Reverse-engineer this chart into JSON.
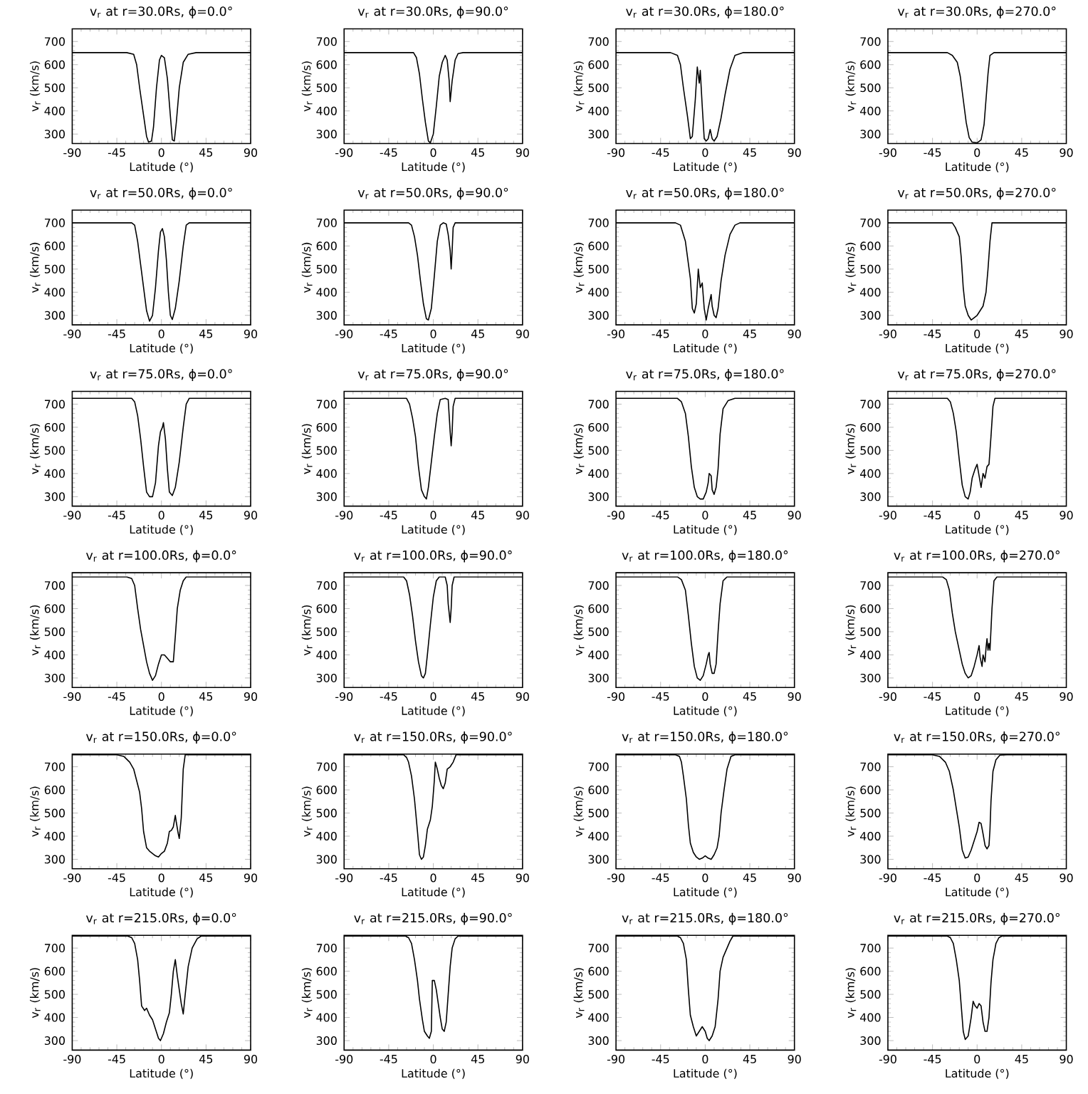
{
  "chart_data": [
    {
      "type": "line",
      "title": "v$_{r}$ at r=30.0Rs, ϕ=0.0°",
      "xlabel": "Latitude (°)",
      "ylabel": "v$_{r}$ (km/s)",
      "xlim": [
        -90,
        90
      ],
      "ylim": [
        259,
        755
      ],
      "xticks": [
        -90,
        -45,
        0,
        45,
        90
      ],
      "yticks": [
        300,
        400,
        500,
        600,
        700
      ],
      "color": "#000000",
      "x": [
        -90,
        -35,
        -28,
        -25,
        -22,
        -18,
        -15,
        -13,
        -10,
        -8,
        -5,
        -2,
        0,
        3,
        6,
        9,
        11,
        13,
        15,
        18,
        22,
        27,
        35,
        90
      ],
      "values": [
        652,
        652,
        645,
        600,
        500,
        380,
        290,
        265,
        270,
        330,
        500,
        620,
        640,
        630,
        540,
        380,
        275,
        270,
        350,
        500,
        610,
        645,
        652,
        652
      ]
    },
    {
      "type": "line",
      "title": "v$_{r}$ at r=30.0Rs, ϕ=90.0°",
      "xlabel": "Latitude (°)",
      "ylabel": "v$_{r}$ (km/s)",
      "xlim": [
        -90,
        90
      ],
      "ylim": [
        259,
        755
      ],
      "xticks": [
        -90,
        -45,
        0,
        45,
        90
      ],
      "yticks": [
        300,
        400,
        500,
        600,
        700
      ],
      "color": "#000000",
      "x": [
        -90,
        -20,
        -17,
        -14,
        -11,
        -8,
        -5,
        -3,
        0,
        3,
        6,
        9,
        12,
        14,
        16,
        17,
        19,
        22,
        25,
        30,
        90
      ],
      "values": [
        652,
        652,
        630,
        560,
        450,
        350,
        270,
        262,
        300,
        420,
        550,
        610,
        640,
        620,
        530,
        440,
        530,
        620,
        648,
        652,
        652
      ]
    },
    {
      "type": "line",
      "title": "v$_{r}$ at r=30.0Rs, ϕ=180.0°",
      "xlabel": "Latitude (°)",
      "ylabel": "v$_{r}$ (km/s)",
      "xlim": [
        -90,
        90
      ],
      "ylim": [
        259,
        755
      ],
      "xticks": [
        -90,
        -45,
        0,
        45,
        90
      ],
      "yticks": [
        300,
        400,
        500,
        600,
        700
      ],
      "color": "#000000",
      "x": [
        -90,
        -35,
        -28,
        -25,
        -22,
        -18,
        -15,
        -13,
        -10,
        -8,
        -6,
        -5,
        -3,
        -1,
        1,
        3,
        5,
        7,
        9,
        12,
        16,
        20,
        25,
        30,
        38,
        90
      ],
      "values": [
        652,
        652,
        640,
        600,
        500,
        380,
        280,
        290,
        450,
        590,
        520,
        575,
        420,
        280,
        270,
        280,
        320,
        280,
        270,
        290,
        370,
        470,
        580,
        640,
        652,
        652
      ]
    },
    {
      "type": "line",
      "title": "v$_{r}$ at r=30.0Rs, ϕ=270.0°",
      "xlabel": "Latitude (°)",
      "ylabel": "v$_{r}$ (km/s)",
      "xlim": [
        -90,
        90
      ],
      "ylim": [
        259,
        755
      ],
      "xticks": [
        -90,
        -45,
        0,
        45,
        90
      ],
      "yticks": [
        300,
        400,
        500,
        600,
        700
      ],
      "color": "#000000",
      "x": [
        -90,
        -30,
        -25,
        -20,
        -17,
        -14,
        -11,
        -8,
        -5,
        0,
        4,
        7,
        9,
        11,
        13,
        17,
        90
      ],
      "values": [
        652,
        652,
        640,
        610,
        550,
        450,
        350,
        285,
        265,
        262,
        275,
        340,
        450,
        560,
        640,
        652,
        652
      ]
    },
    {
      "type": "line",
      "title": "v$_{r}$ at r=50.0Rs, ϕ=0.0°",
      "xlabel": "Latitude (°)",
      "ylabel": "v$_{r}$ (km/s)",
      "xlim": [
        -90,
        90
      ],
      "ylim": [
        259,
        755
      ],
      "xticks": [
        -90,
        -45,
        0,
        45,
        90
      ],
      "yticks": [
        300,
        400,
        500,
        600,
        700
      ],
      "color": "#000000",
      "x": [
        -90,
        -30,
        -27,
        -24,
        -21,
        -18,
        -15,
        -12,
        -9,
        -6,
        -3,
        -1,
        1,
        3,
        5,
        7,
        9,
        11,
        14,
        18,
        22,
        25,
        28,
        90
      ],
      "values": [
        700,
        700,
        690,
        620,
        520,
        420,
        320,
        275,
        300,
        420,
        580,
        660,
        675,
        640,
        540,
        400,
        300,
        282,
        330,
        450,
        600,
        690,
        700,
        700
      ]
    },
    {
      "type": "line",
      "title": "v$_{r}$ at r=50.0Rs, ϕ=90.0°",
      "xlabel": "Latitude (°)",
      "ylabel": "v$_{r}$ (km/s)",
      "xlim": [
        -90,
        90
      ],
      "ylim": [
        259,
        755
      ],
      "xticks": [
        -90,
        -45,
        0,
        45,
        90
      ],
      "yticks": [
        300,
        400,
        500,
        600,
        700
      ],
      "color": "#000000",
      "x": [
        -90,
        -25,
        -22,
        -19,
        -16,
        -13,
        -10,
        -7,
        -5,
        -2,
        1,
        4,
        7,
        10,
        13,
        15,
        17,
        18,
        19,
        20,
        22,
        90
      ],
      "values": [
        700,
        700,
        690,
        640,
        560,
        450,
        350,
        285,
        280,
        330,
        470,
        620,
        690,
        700,
        695,
        650,
        580,
        500,
        580,
        680,
        700,
        700
      ]
    },
    {
      "type": "line",
      "title": "v$_{r}$ at r=50.0Rs, ϕ=180.0°",
      "xlabel": "Latitude (°)",
      "ylabel": "v$_{r}$ (km/s)",
      "xlim": [
        -90,
        90
      ],
      "ylim": [
        259,
        755
      ],
      "xticks": [
        -90,
        -45,
        0,
        45,
        90
      ],
      "yticks": [
        300,
        400,
        500,
        600,
        700
      ],
      "color": "#000000",
      "x": [
        -90,
        -30,
        -25,
        -20,
        -15,
        -13,
        -11,
        -9,
        -7,
        -5,
        -3,
        -1,
        1,
        3,
        5,
        6,
        7,
        9,
        11,
        13,
        16,
        20,
        25,
        30,
        35,
        90
      ],
      "values": [
        700,
        700,
        690,
        620,
        460,
        330,
        310,
        350,
        500,
        420,
        440,
        330,
        280,
        330,
        370,
        390,
        340,
        300,
        290,
        330,
        450,
        560,
        650,
        690,
        700,
        700
      ]
    },
    {
      "type": "line",
      "title": "v$_{r}$ at r=50.0Rs, ϕ=270.0°",
      "xlabel": "Latitude (°)",
      "ylabel": "v$_{r}$ (km/s)",
      "xlim": [
        -90,
        90
      ],
      "ylim": [
        259,
        755
      ],
      "xticks": [
        -90,
        -45,
        0,
        45,
        90
      ],
      "yticks": [
        300,
        400,
        500,
        600,
        700
      ],
      "color": "#000000",
      "x": [
        -90,
        -25,
        -22,
        -18,
        -16,
        -14,
        -12,
        -9,
        -6,
        -3,
        0,
        3,
        6,
        9,
        11,
        13,
        15,
        90
      ],
      "values": [
        700,
        700,
        680,
        640,
        550,
        420,
        340,
        300,
        280,
        290,
        300,
        320,
        340,
        400,
        500,
        620,
        700,
        700
      ]
    },
    {
      "type": "line",
      "title": "v$_{r}$ at r=75.0Rs, ϕ=0.0°",
      "xlabel": "Latitude (°)",
      "ylabel": "v$_{r}$ (km/s)",
      "xlim": [
        -90,
        90
      ],
      "ylim": [
        259,
        755
      ],
      "xticks": [
        -90,
        -45,
        0,
        45,
        90
      ],
      "yticks": [
        300,
        400,
        500,
        600,
        700
      ],
      "color": "#000000",
      "x": [
        -90,
        -30,
        -27,
        -24,
        -21,
        -18,
        -15,
        -12,
        -9,
        -6,
        -3,
        -1,
        1,
        2,
        4,
        6,
        8,
        11,
        14,
        18,
        22,
        25,
        28,
        90
      ],
      "values": [
        725,
        725,
        710,
        650,
        550,
        430,
        320,
        300,
        300,
        360,
        520,
        580,
        600,
        620,
        550,
        420,
        320,
        305,
        340,
        450,
        600,
        700,
        725,
        725
      ]
    },
    {
      "type": "line",
      "title": "v$_{r}$ at r=75.0Rs, ϕ=90.0°",
      "xlabel": "Latitude (°)",
      "ylabel": "v$_{r}$ (km/s)",
      "xlim": [
        -90,
        90
      ],
      "ylim": [
        259,
        755
      ],
      "xticks": [
        -90,
        -45,
        0,
        45,
        90
      ],
      "yticks": [
        300,
        400,
        500,
        600,
        700
      ],
      "color": "#000000",
      "x": [
        -90,
        -27,
        -24,
        -21,
        -18,
        -15,
        -12,
        -9,
        -7,
        -5,
        -2,
        1,
        4,
        7,
        12,
        15,
        16,
        17,
        18,
        19,
        20,
        22,
        90
      ],
      "values": [
        725,
        725,
        700,
        640,
        560,
        430,
        330,
        300,
        290,
        340,
        450,
        560,
        660,
        720,
        725,
        720,
        650,
        580,
        520,
        580,
        690,
        725,
        725
      ]
    },
    {
      "type": "line",
      "title": "v$_{r}$ at r=75.0Rs, ϕ=180.0°",
      "xlabel": "Latitude (°)",
      "ylabel": "v$_{r}$ (km/s)",
      "xlim": [
        -90,
        90
      ],
      "ylim": [
        259,
        755
      ],
      "xticks": [
        -90,
        -45,
        0,
        45,
        90
      ],
      "yticks": [
        300,
        400,
        500,
        600,
        700
      ],
      "color": "#000000",
      "x": [
        -90,
        -28,
        -24,
        -20,
        -17,
        -14,
        -11,
        -8,
        -5,
        -2,
        1,
        3,
        4,
        6,
        7,
        9,
        11,
        13,
        15,
        18,
        23,
        30,
        90
      ],
      "values": [
        725,
        725,
        710,
        660,
        560,
        430,
        340,
        300,
        290,
        290,
        320,
        360,
        400,
        390,
        330,
        310,
        340,
        420,
        570,
        680,
        715,
        725,
        725
      ]
    },
    {
      "type": "line",
      "title": "v$_{r}$ at r=75.0Rs, ϕ=270.0°",
      "xlabel": "Latitude (°)",
      "ylabel": "v$_{r}$ (km/s)",
      "xlim": [
        -90,
        90
      ],
      "ylim": [
        259,
        755
      ],
      "xticks": [
        -90,
        -45,
        0,
        45,
        90
      ],
      "yticks": [
        300,
        400,
        500,
        600,
        700
      ],
      "color": "#000000",
      "x": [
        -90,
        -30,
        -27,
        -24,
        -21,
        -18,
        -15,
        -12,
        -9,
        -7,
        -5,
        -2,
        0,
        2,
        4,
        6,
        8,
        10,
        12,
        14,
        16,
        18,
        90
      ],
      "values": [
        725,
        725,
        710,
        660,
        580,
        460,
        350,
        300,
        290,
        320,
        380,
        420,
        440,
        390,
        340,
        400,
        380,
        430,
        440,
        560,
        690,
        725,
        725
      ]
    },
    {
      "type": "line",
      "title": "v$_{r}$ at r=100.0Rs, ϕ=0.0°",
      "xlabel": "Latitude (°)",
      "ylabel": "v$_{r}$ (km/s)",
      "xlim": [
        -90,
        90
      ],
      "ylim": [
        259,
        755
      ],
      "xticks": [
        -90,
        -45,
        0,
        45,
        90
      ],
      "yticks": [
        300,
        400,
        500,
        600,
        700
      ],
      "color": "#000000",
      "x": [
        -90,
        -35,
        -30,
        -27,
        -24,
        -21,
        -18,
        -15,
        -12,
        -9,
        -6,
        -3,
        0,
        3,
        6,
        9,
        12,
        14,
        16,
        19,
        22,
        25,
        90
      ],
      "values": [
        737,
        737,
        730,
        700,
        600,
        510,
        440,
        370,
        320,
        290,
        310,
        360,
        400,
        400,
        385,
        370,
        370,
        480,
        600,
        680,
        720,
        737,
        737
      ]
    },
    {
      "type": "line",
      "title": "v$_{r}$ at r=100.0Rs, ϕ=90.0°",
      "xlabel": "Latitude (°)",
      "ylabel": "v$_{r}$ (km/s)",
      "xlim": [
        -90,
        90
      ],
      "ylim": [
        259,
        755
      ],
      "xticks": [
        -90,
        -45,
        0,
        45,
        90
      ],
      "yticks": [
        300,
        400,
        500,
        600,
        700
      ],
      "color": "#000000",
      "x": [
        -90,
        -30,
        -27,
        -24,
        -21,
        -18,
        -15,
        -12,
        -10,
        -8,
        -6,
        -3,
        0,
        3,
        6,
        12,
        14,
        15,
        17,
        18,
        19,
        21,
        90
      ],
      "values": [
        737,
        737,
        720,
        660,
        570,
        460,
        370,
        310,
        300,
        320,
        400,
        530,
        650,
        720,
        737,
        737,
        700,
        620,
        540,
        600,
        700,
        737,
        737
      ]
    },
    {
      "type": "line",
      "title": "v$_{r}$ at r=100.0Rs, ϕ=180.0°",
      "xlabel": "Latitude (°)",
      "ylabel": "v$_{r}$ (km/s)",
      "xlim": [
        -90,
        90
      ],
      "ylim": [
        259,
        755
      ],
      "xticks": [
        -90,
        -45,
        0,
        45,
        90
      ],
      "yticks": [
        300,
        400,
        500,
        600,
        700
      ],
      "color": "#000000",
      "x": [
        -90,
        -28,
        -24,
        -20,
        -17,
        -14,
        -11,
        -8,
        -5,
        -2,
        1,
        3,
        4,
        5,
        7,
        9,
        11,
        13,
        15,
        18,
        22,
        90
      ],
      "values": [
        737,
        737,
        725,
        680,
        570,
        450,
        350,
        300,
        290,
        310,
        360,
        400,
        410,
        360,
        320,
        320,
        360,
        500,
        620,
        720,
        737,
        737
      ]
    },
    {
      "type": "line",
      "title": "v$_{r}$ at r=100.0Rs, ϕ=270.0°",
      "xlabel": "Latitude (°)",
      "ylabel": "v$_{r}$ (km/s)",
      "xlim": [
        -90,
        90
      ],
      "ylim": [
        259,
        755
      ],
      "xticks": [
        -90,
        -45,
        0,
        45,
        90
      ],
      "yticks": [
        300,
        400,
        500,
        600,
        700
      ],
      "color": "#000000",
      "x": [
        -90,
        -35,
        -31,
        -28,
        -25,
        -22,
        -18,
        -15,
        -12,
        -9,
        -6,
        -3,
        0,
        2,
        3,
        5,
        6,
        8,
        9,
        10,
        11,
        12,
        13,
        15,
        17,
        20,
        90
      ],
      "values": [
        737,
        737,
        725,
        680,
        580,
        500,
        420,
        360,
        320,
        300,
        310,
        350,
        400,
        440,
        390,
        350,
        400,
        370,
        430,
        470,
        420,
        450,
        420,
        600,
        720,
        737,
        737
      ]
    },
    {
      "type": "line",
      "title": "v$_{r}$ at r=150.0Rs, ϕ=0.0°",
      "xlabel": "Latitude (°)",
      "ylabel": "v$_{r}$ (km/s)",
      "xlim": [
        -90,
        90
      ],
      "ylim": [
        259,
        755
      ],
      "xticks": [
        -90,
        -45,
        0,
        45,
        90
      ],
      "yticks": [
        300,
        400,
        500,
        600,
        700
      ],
      "color": "#000000",
      "x": [
        -90,
        -45,
        -38,
        -32,
        -28,
        -25,
        -22,
        -20,
        -18,
        -15,
        -12,
        -9,
        -6,
        -3,
        0,
        3,
        6,
        8,
        10,
        12,
        14,
        15,
        17,
        18,
        20,
        22,
        24,
        90
      ],
      "values": [
        752,
        752,
        745,
        720,
        690,
        640,
        590,
        520,
        420,
        350,
        335,
        325,
        315,
        310,
        325,
        335,
        370,
        420,
        425,
        440,
        490,
        460,
        410,
        390,
        480,
        690,
        752,
        752
      ]
    },
    {
      "type": "line",
      "title": "v$_{r}$ at r=150.0Rs, ϕ=90.0°",
      "xlabel": "Latitude (°)",
      "ylabel": "v$_{r}$ (km/s)",
      "xlim": [
        -90,
        90
      ],
      "ylim": [
        259,
        755
      ],
      "xticks": [
        -90,
        -45,
        0,
        45,
        90
      ],
      "yticks": [
        300,
        400,
        500,
        600,
        700
      ],
      "color": "#000000",
      "x": [
        -90,
        -30,
        -27,
        -25,
        -22,
        -19,
        -16,
        -14,
        -12,
        -10,
        -8,
        -6,
        -3,
        -1,
        1,
        2,
        4,
        6,
        8,
        10,
        12,
        14,
        17,
        20,
        23,
        90
      ],
      "values": [
        752,
        752,
        740,
        720,
        660,
        560,
        420,
        320,
        300,
        310,
        360,
        430,
        470,
        530,
        640,
        720,
        690,
        650,
        620,
        605,
        630,
        690,
        700,
        720,
        752,
        752
      ]
    },
    {
      "type": "line",
      "title": "v$_{r}$ at r=150.0Rs, ϕ=180.0°",
      "xlabel": "Latitude (°)",
      "ylabel": "v$_{r}$ (km/s)",
      "xlim": [
        -90,
        90
      ],
      "ylim": [
        259,
        755
      ],
      "xticks": [
        -90,
        -45,
        0,
        45,
        90
      ],
      "yticks": [
        300,
        400,
        500,
        600,
        700
      ],
      "color": "#000000",
      "x": [
        -90,
        -30,
        -26,
        -24,
        -22,
        -19,
        -17,
        -15,
        -12,
        -9,
        -6,
        -3,
        0,
        3,
        6,
        9,
        12,
        14,
        16,
        19,
        22,
        26,
        30,
        90
      ],
      "values": [
        752,
        752,
        745,
        720,
        660,
        560,
        450,
        370,
        330,
        310,
        300,
        305,
        315,
        305,
        300,
        320,
        350,
        400,
        500,
        600,
        690,
        745,
        752,
        752
      ]
    },
    {
      "type": "line",
      "title": "v$_{r}$ at r=150.0Rs, ϕ=270.0°",
      "xlabel": "Latitude (°)",
      "ylabel": "v$_{r}$ (km/s)",
      "xlim": [
        -90,
        90
      ],
      "ylim": [
        259,
        755
      ],
      "xticks": [
        -90,
        -45,
        0,
        45,
        90
      ],
      "yticks": [
        300,
        400,
        500,
        600,
        700
      ],
      "color": "#000000",
      "x": [
        -90,
        -45,
        -38,
        -32,
        -28,
        -24,
        -21,
        -18,
        -15,
        -12,
        -9,
        -6,
        -3,
        0,
        2,
        4,
        6,
        8,
        10,
        12,
        13,
        14,
        16,
        19,
        23,
        30,
        90
      ],
      "values": [
        752,
        752,
        745,
        720,
        680,
        600,
        520,
        440,
        340,
        305,
        310,
        340,
        380,
        420,
        460,
        455,
        410,
        360,
        345,
        360,
        430,
        550,
        680,
        730,
        750,
        752,
        752
      ]
    },
    {
      "type": "line",
      "title": "v$_{r}$ at r=215.0Rs, ϕ=0.0°",
      "xlabel": "Latitude (°)",
      "ylabel": "v$_{r}$ (km/s)",
      "xlim": [
        -90,
        90
      ],
      "ylim": [
        259,
        755
      ],
      "xticks": [
        -90,
        -45,
        0,
        45,
        90
      ],
      "yticks": [
        300,
        400,
        500,
        600,
        700
      ],
      "color": "#000000",
      "x": [
        -90,
        -34,
        -30,
        -27,
        -24,
        -22,
        -20,
        -17,
        -15,
        -12,
        -9,
        -6,
        -3,
        -1,
        2,
        5,
        8,
        10,
        12,
        14,
        16,
        18,
        20,
        22,
        24,
        27,
        31,
        36,
        40,
        90
      ],
      "values": [
        752,
        752,
        745,
        720,
        650,
        560,
        450,
        430,
        440,
        410,
        390,
        350,
        310,
        300,
        330,
        380,
        420,
        500,
        600,
        650,
        580,
        520,
        460,
        415,
        500,
        620,
        700,
        740,
        752,
        752
      ]
    },
    {
      "type": "line",
      "title": "v$_{r}$ at r=215.0Rs, ϕ=90.0°",
      "xlabel": "Latitude (°)",
      "ylabel": "v$_{r}$ (km/s)",
      "xlim": [
        -90,
        90
      ],
      "ylim": [
        259,
        755
      ],
      "xticks": [
        -90,
        -45,
        0,
        45,
        90
      ],
      "yticks": [
        300,
        400,
        500,
        600,
        700
      ],
      "color": "#000000",
      "x": [
        -90,
        -28,
        -25,
        -22,
        -19,
        -16,
        -14,
        -11,
        -9,
        -6,
        -4,
        -2,
        -1,
        1,
        3,
        5,
        7,
        9,
        11,
        13,
        15,
        17,
        19,
        22,
        25,
        90
      ],
      "values": [
        752,
        752,
        745,
        720,
        650,
        560,
        480,
        390,
        340,
        320,
        310,
        340,
        560,
        560,
        520,
        460,
        400,
        350,
        340,
        380,
        500,
        620,
        700,
        740,
        752,
        752
      ]
    },
    {
      "type": "line",
      "title": "v$_{r}$ at r=215.0Rs, ϕ=180.0°",
      "xlabel": "Latitude (°)",
      "ylabel": "v$_{r}$ (km/s)",
      "xlim": [
        -90,
        90
      ],
      "ylim": [
        259,
        755
      ],
      "xticks": [
        -90,
        -45,
        0,
        45,
        90
      ],
      "yticks": [
        300,
        400,
        500,
        600,
        700
      ],
      "color": "#000000",
      "x": [
        -90,
        -28,
        -25,
        -22,
        -19,
        -17,
        -15,
        -12,
        -9,
        -6,
        -3,
        0,
        2,
        4,
        7,
        10,
        13,
        15,
        18,
        22,
        25,
        28,
        90
      ],
      "values": [
        752,
        752,
        745,
        720,
        650,
        520,
        410,
        360,
        320,
        340,
        360,
        340,
        310,
        300,
        320,
        360,
        480,
        600,
        660,
        700,
        730,
        752,
        752
      ]
    },
    {
      "type": "line",
      "title": "v$_{r}$ at r=215.0Rs, ϕ=270.0°",
      "xlabel": "Latitude (°)",
      "ylabel": "v$_{r}$ (km/s)",
      "xlim": [
        -90,
        90
      ],
      "ylim": [
        259,
        755
      ],
      "xticks": [
        -90,
        -45,
        0,
        45,
        90
      ],
      "yticks": [
        300,
        400,
        500,
        600,
        700
      ],
      "color": "#000000",
      "x": [
        -90,
        -30,
        -27,
        -24,
        -21,
        -18,
        -16,
        -14,
        -12,
        -9,
        -6,
        -4,
        -2,
        0,
        2,
        4,
        6,
        8,
        10,
        12,
        14,
        16,
        19,
        22,
        25,
        90
      ],
      "values": [
        752,
        752,
        745,
        720,
        650,
        560,
        450,
        340,
        305,
        320,
        400,
        470,
        450,
        440,
        460,
        450,
        380,
        340,
        340,
        400,
        550,
        650,
        720,
        745,
        752,
        752
      ]
    }
  ]
}
